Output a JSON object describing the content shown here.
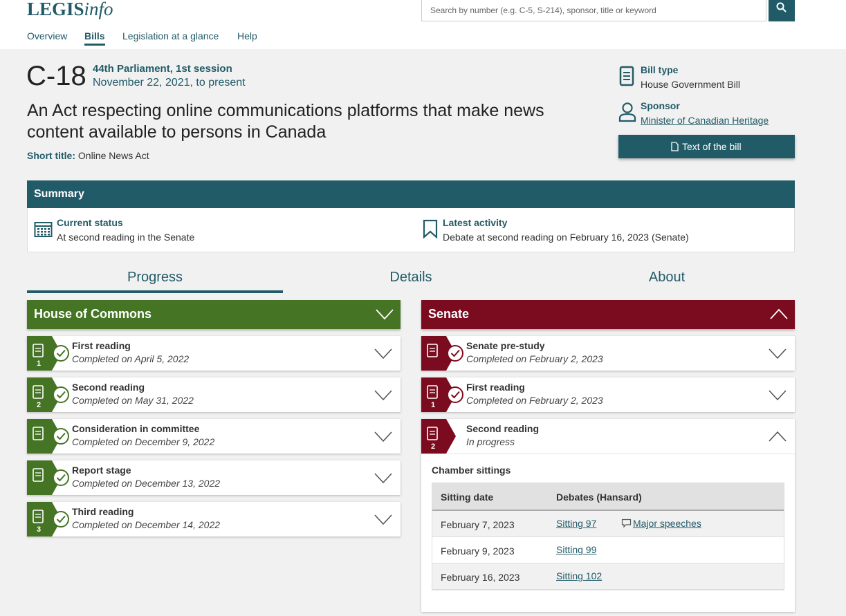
{
  "header": {
    "logo_bold": "LEGIS",
    "logo_italic": "info",
    "search_placeholder": "Search by number (e.g. C-5, S-214), sponsor, title or keyword",
    "nav": [
      "Overview",
      "Bills",
      "Legislation at a glance",
      "Help"
    ]
  },
  "bill": {
    "number": "C-18",
    "session": "44th Parliament, 1st session",
    "dates": "November 22, 2021, to present",
    "title": "An Act respecting online communications platforms that make news content available to persons in Canada",
    "short_title_label": "Short title:",
    "short_title": "Online News Act",
    "bill_type_label": "Bill type",
    "bill_type": "House Government Bill",
    "sponsor_label": "Sponsor",
    "sponsor": "Minister of Canadian Heritage",
    "text_button": "Text of the bill"
  },
  "summary": {
    "heading": "Summary",
    "current_status_label": "Current status",
    "current_status": "At second reading in the Senate",
    "latest_activity_label": "Latest activity",
    "latest_activity": "Debate at second reading on February 16, 2023 (Senate)"
  },
  "tabs": [
    "Progress",
    "Details",
    "About"
  ],
  "house": {
    "heading": "House of Commons",
    "stages": [
      {
        "number": "1",
        "title": "First reading",
        "status": "Completed on April 5, 2022"
      },
      {
        "number": "2",
        "title": "Second reading",
        "status": "Completed on May 31, 2022"
      },
      {
        "title": "Consideration in committee",
        "status": "Completed on December 9, 2022"
      },
      {
        "title": "Report stage",
        "status": "Completed on December 13, 2022"
      },
      {
        "number": "3",
        "title": "Third reading",
        "status": "Completed on December 14, 2022"
      }
    ]
  },
  "senate": {
    "heading": "Senate",
    "stages": [
      {
        "title": "Senate pre-study",
        "status": "Completed on February 2, 2023"
      },
      {
        "number": "1",
        "title": "First reading",
        "status": "Completed on February 2, 2023"
      },
      {
        "number": "2",
        "title": "Second reading",
        "status": "In progress"
      }
    ],
    "sittings": {
      "heading": "Chamber sittings",
      "columns": [
        "Sitting date",
        "Debates (Hansard)"
      ],
      "rows": [
        {
          "date": "February 7, 2023",
          "sitting": "Sitting 97",
          "speeches": "Major speeches"
        },
        {
          "date": "February 9, 2023",
          "sitting": "Sitting 99"
        },
        {
          "date": "February 16, 2023",
          "sitting": "Sitting 102"
        }
      ]
    }
  }
}
